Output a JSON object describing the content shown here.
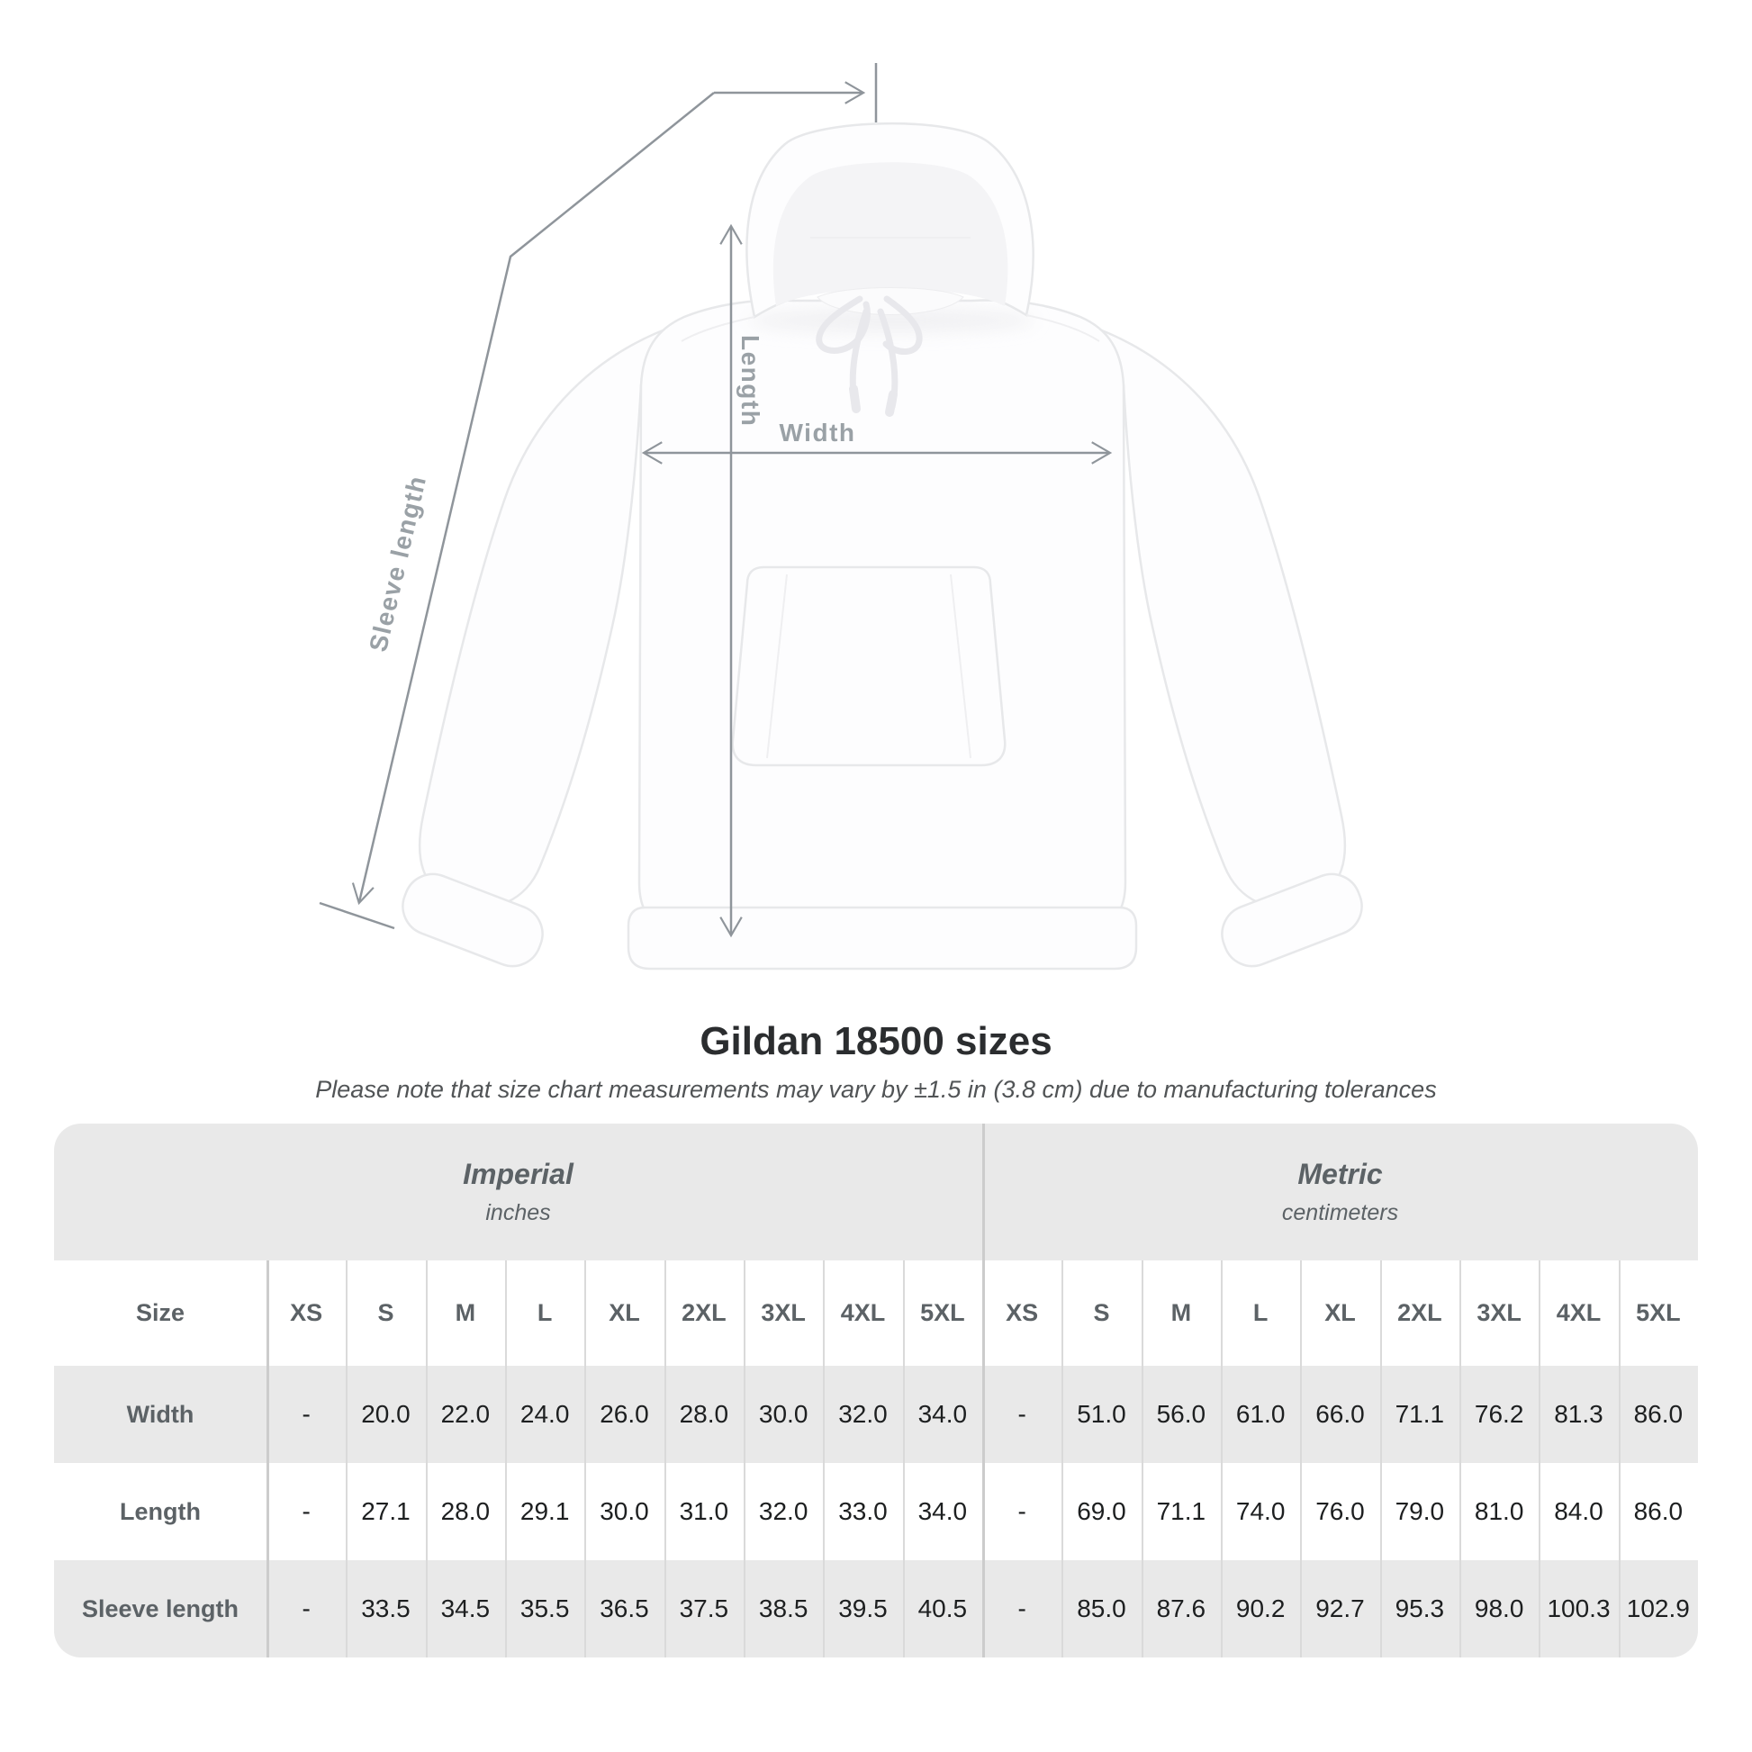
{
  "heading": {
    "title": "Gildan 18500 sizes",
    "subtitle": "Please note that size chart measurements may vary by ±1.5 in (3.8 cm) due to manufacturing tolerances"
  },
  "diagram": {
    "labels": {
      "length": "Length",
      "width": "Width",
      "sleeve_length": "Sleeve length"
    },
    "line_color": "#8f959b",
    "label_color": "#9aa1a6"
  },
  "table": {
    "size_header_label": "Size",
    "unit_groups": [
      {
        "label": "Imperial",
        "sublabel": "inches"
      },
      {
        "label": "Metric",
        "sublabel": "centimeters"
      }
    ],
    "sizes": [
      "XS",
      "S",
      "M",
      "L",
      "XL",
      "2XL",
      "3XL",
      "4XL",
      "5XL"
    ],
    "rows": [
      {
        "label": "Width",
        "values": [
          "-",
          "20.0",
          "22.0",
          "24.0",
          "26.0",
          "28.0",
          "30.0",
          "32.0",
          "34.0",
          "-",
          "51.0",
          "56.0",
          "61.0",
          "66.0",
          "71.1",
          "76.2",
          "81.3",
          "86.0"
        ]
      },
      {
        "label": "Length",
        "values": [
          "-",
          "27.1",
          "28.0",
          "29.1",
          "30.0",
          "31.0",
          "32.0",
          "33.0",
          "34.0",
          "-",
          "69.0",
          "71.1",
          "74.0",
          "76.0",
          "79.0",
          "81.0",
          "84.0",
          "86.0"
        ]
      },
      {
        "label": "Sleeve length",
        "values": [
          "-",
          "33.5",
          "34.5",
          "35.5",
          "36.5",
          "37.5",
          "38.5",
          "39.5",
          "40.5",
          "-",
          "85.0",
          "87.6",
          "90.2",
          "92.7",
          "95.3",
          "98.0",
          "100.3",
          "102.9"
        ]
      }
    ]
  },
  "colors": {
    "row_shade": "#e9e9e9",
    "header_text": "#5c6266",
    "value_text": "#1d1f20",
    "accent_line": "#8f959b"
  },
  "chart_data": {
    "type": "table",
    "title": "Gildan 18500 sizes",
    "note": "Please note that size chart measurements may vary by ±1.5 in (3.8 cm) due to manufacturing tolerances",
    "column_groups": [
      "Imperial (inches)",
      "Metric (centimeters)"
    ],
    "sizes": [
      "XS",
      "S",
      "M",
      "L",
      "XL",
      "2XL",
      "3XL",
      "4XL",
      "5XL"
    ],
    "rows": [
      {
        "measurement": "Width",
        "imperial_in": [
          null,
          20.0,
          22.0,
          24.0,
          26.0,
          28.0,
          30.0,
          32.0,
          34.0
        ],
        "metric_cm": [
          null,
          51.0,
          56.0,
          61.0,
          66.0,
          71.1,
          76.2,
          81.3,
          86.0
        ]
      },
      {
        "measurement": "Length",
        "imperial_in": [
          null,
          27.1,
          28.0,
          29.1,
          30.0,
          31.0,
          32.0,
          33.0,
          34.0
        ],
        "metric_cm": [
          null,
          69.0,
          71.1,
          74.0,
          76.0,
          79.0,
          81.0,
          84.0,
          86.0
        ]
      },
      {
        "measurement": "Sleeve length",
        "imperial_in": [
          null,
          33.5,
          34.5,
          35.5,
          36.5,
          37.5,
          38.5,
          39.5,
          40.5
        ],
        "metric_cm": [
          null,
          85.0,
          87.6,
          90.2,
          92.7,
          95.3,
          98.0,
          100.3,
          102.9
        ]
      }
    ]
  }
}
